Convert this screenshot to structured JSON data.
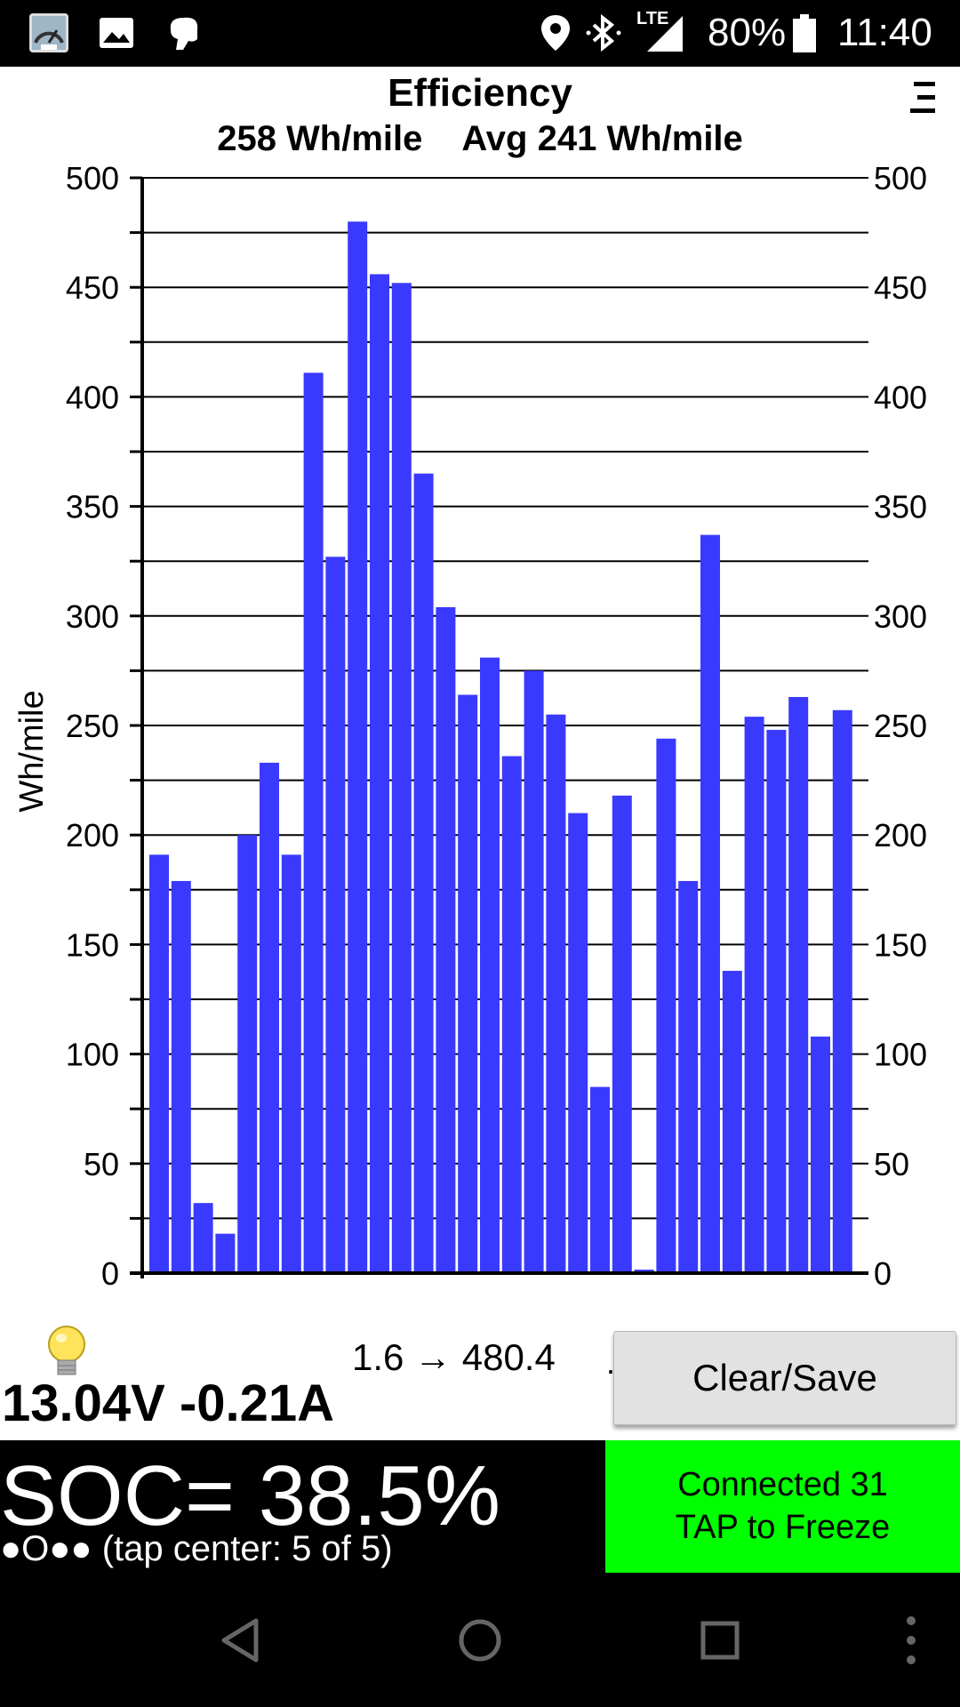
{
  "status_bar": {
    "icons": [
      "speedometer-app-icon",
      "image-icon",
      "hand-icon",
      "location-icon",
      "bluetooth-icon",
      "signal-lte-icon",
      "battery-icon"
    ],
    "lte_label": "LTE",
    "battery": "80%",
    "time": "11:40"
  },
  "header": {
    "title": "Efficiency",
    "current": "258 Wh/mile",
    "average": "Avg 241 Wh/mile",
    "menu_icon": "menu-icon"
  },
  "chart_data": {
    "type": "bar",
    "title": "Efficiency",
    "ylabel": "Wh/mile",
    "xlabel": "",
    "ylim": [
      0,
      500
    ],
    "yticks": [
      0,
      50,
      100,
      150,
      200,
      250,
      300,
      350,
      400,
      450,
      500
    ],
    "grid": true,
    "bar_color": "#3a3aff",
    "values": [
      191,
      179,
      32,
      18,
      200,
      233,
      191,
      411,
      327,
      480,
      456,
      452,
      365,
      304,
      264,
      281,
      236,
      275,
      255,
      210,
      85,
      218,
      1.6,
      244,
      179,
      337,
      138,
      254,
      248,
      263,
      108,
      257
    ]
  },
  "controls": {
    "bulb_icon": "lightbulb-icon",
    "range": "1.6 → 480.4",
    "dot": ".",
    "clear_save": "Clear/Save",
    "voltage_current": "13.04V -0.21A"
  },
  "footer": {
    "soc": "SOC= 38.5%",
    "pager": "●O●● (tap center: 5 of 5)",
    "connected_line1": "Connected 31",
    "connected_line2": "TAP to Freeze",
    "connected_color": "#00ff00"
  },
  "nav": {
    "back_icon": "back-icon",
    "home_icon": "home-icon",
    "recents_icon": "recents-icon",
    "more_icon": "more-icon"
  }
}
